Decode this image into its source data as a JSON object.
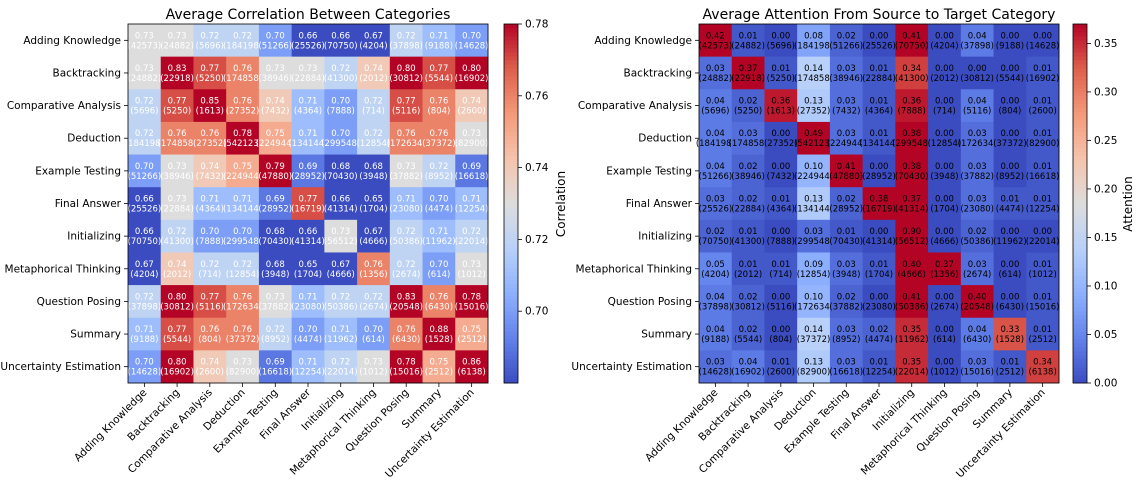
{
  "chart_data": [
    {
      "type": "heatmap",
      "title": "Average Correlation Between Categories",
      "xlabel": "",
      "ylabel": "",
      "categories": [
        "Adding Knowledge",
        "Backtracking",
        "Comparative Analysis",
        "Deduction",
        "Example Testing",
        "Final Answer",
        "Initializing",
        "Metaphorical Thinking",
        "Question Posing",
        "Summary",
        "Uncertainty Estimation"
      ],
      "values": [
        [
          "0.73",
          "0.73",
          "0.72",
          "0.72",
          "0.70",
          "0.66",
          "0.66",
          "0.67",
          "0.72",
          "0.71",
          "0.70"
        ],
        [
          "0.73",
          "0.83",
          "0.77",
          "0.76",
          "0.73",
          "0.73",
          "0.72",
          "0.74",
          "0.80",
          "0.77",
          "0.80"
        ],
        [
          "0.72",
          "0.77",
          "0.85",
          "0.76",
          "0.74",
          "0.71",
          "0.70",
          "0.72",
          "0.77",
          "0.76",
          "0.74"
        ],
        [
          "0.72",
          "0.76",
          "0.76",
          "0.78",
          "0.75",
          "0.71",
          "0.70",
          "0.72",
          "0.76",
          "0.76",
          "0.73"
        ],
        [
          "0.70",
          "0.73",
          "0.74",
          "0.75",
          "0.79",
          "0.69",
          "0.68",
          "0.68",
          "0.73",
          "0.72",
          "0.69"
        ],
        [
          "0.66",
          "0.73",
          "0.71",
          "0.71",
          "0.69",
          "0.77",
          "0.66",
          "0.65",
          "0.71",
          "0.70",
          "0.71"
        ],
        [
          "0.66",
          "0.72",
          "0.70",
          "0.70",
          "0.68",
          "0.66",
          "0.73",
          "0.67",
          "0.72",
          "0.71",
          "0.72"
        ],
        [
          "0.67",
          "0.74",
          "0.72",
          "0.72",
          "0.68",
          "0.65",
          "0.67",
          "0.76",
          "0.72",
          "0.70",
          "0.73"
        ],
        [
          "0.72",
          "0.80",
          "0.77",
          "0.76",
          "0.73",
          "0.71",
          "0.72",
          "0.72",
          "0.83",
          "0.76",
          "0.78"
        ],
        [
          "0.71",
          "0.77",
          "0.76",
          "0.76",
          "0.72",
          "0.70",
          "0.71",
          "0.70",
          "0.76",
          "0.88",
          "0.75"
        ],
        [
          "0.70",
          "0.80",
          "0.74",
          "0.73",
          "0.69",
          "0.71",
          "0.72",
          "0.73",
          "0.78",
          "0.75",
          "0.86"
        ]
      ],
      "counts": [
        [
          "(42573)",
          "(24882)",
          "(5696)",
          "(184198)",
          "(51266)",
          "(25526)",
          "(70750)",
          "(4204)",
          "(37898)",
          "(9188)",
          "(14628)"
        ],
        [
          "(24882)",
          "(22918)",
          "(5250)",
          "(174858)",
          "(38946)",
          "(22884)",
          "(41300)",
          "(2012)",
          "(30812)",
          "(5544)",
          "(16902)"
        ],
        [
          "(5696)",
          "(5250)",
          "(1613)",
          "(27352)",
          "(7432)",
          "(4364)",
          "(7888)",
          "(714)",
          "(5116)",
          "(804)",
          "(2600)"
        ],
        [
          "(184198)",
          "(174858)",
          "(27352)",
          "(542123)",
          "(224944)",
          "(134144)",
          "(299548)",
          "(12854)",
          "(172634)",
          "(37372)",
          "(82900)"
        ],
        [
          "(51266)",
          "(38946)",
          "(7432)",
          "(224944)",
          "(47880)",
          "(28952)",
          "(70430)",
          "(3948)",
          "(37882)",
          "(8952)",
          "(16618)"
        ],
        [
          "(25526)",
          "(22884)",
          "(4364)",
          "(134144)",
          "(28952)",
          "(16719)",
          "(41314)",
          "(1704)",
          "(23080)",
          "(4474)",
          "(12254)"
        ],
        [
          "(70750)",
          "(41300)",
          "(7888)",
          "(299548)",
          "(70430)",
          "(41314)",
          "(56512)",
          "(4666)",
          "(50386)",
          "(11962)",
          "(22014)"
        ],
        [
          "(4204)",
          "(2012)",
          "(714)",
          "(12854)",
          "(3948)",
          "(1704)",
          "(4666)",
          "(1356)",
          "(2674)",
          "(614)",
          "(1012)"
        ],
        [
          "(37898)",
          "(30812)",
          "(5116)",
          "(172634)",
          "(37882)",
          "(23080)",
          "(50386)",
          "(2674)",
          "(20548)",
          "(6430)",
          "(15016)"
        ],
        [
          "(9188)",
          "(5544)",
          "(804)",
          "(37372)",
          "(8952)",
          "(4474)",
          "(11962)",
          "(614)",
          "(6430)",
          "(1528)",
          "(2512)"
        ],
        [
          "(14628)",
          "(16902)",
          "(2600)",
          "(82900)",
          "(16618)",
          "(12254)",
          "(22014)",
          "(1012)",
          "(15016)",
          "(2512)",
          "(6138)"
        ]
      ],
      "colorbar": {
        "label": "Correlation",
        "colormap": "coolwarm",
        "vmin": 0.68,
        "vmax": 0.78,
        "ticks": [
          "0.70",
          "0.72",
          "0.74",
          "0.76",
          "0.78"
        ]
      }
    },
    {
      "type": "heatmap",
      "title": "Average Attention From Source to Target Category",
      "xlabel": "",
      "ylabel": "",
      "categories": [
        "Adding Knowledge",
        "Backtracking",
        "Comparative Analysis",
        "Deduction",
        "Example Testing",
        "Final Answer",
        "Initializing",
        "Metaphorical Thinking",
        "Question Posing",
        "Summary",
        "Uncertainty Estimation"
      ],
      "values": [
        [
          "0.42",
          "0.01",
          "0.00",
          "0.08",
          "0.02",
          "0.00",
          "0.41",
          "0.00",
          "0.04",
          "0.00",
          "0.00"
        ],
        [
          "0.03",
          "0.37",
          "0.01",
          "0.14",
          "0.03",
          "0.01",
          "0.34",
          "0.00",
          "0.00",
          "0.00",
          "0.01"
        ],
        [
          "0.04",
          "0.02",
          "0.36",
          "0.13",
          "0.03",
          "0.01",
          "0.36",
          "0.00",
          "0.04",
          "0.00",
          "0.01"
        ],
        [
          "0.04",
          "0.03",
          "0.00",
          "0.49",
          "0.03",
          "0.01",
          "0.38",
          "0.00",
          "0.03",
          "0.00",
          "0.01"
        ],
        [
          "0.04",
          "0.02",
          "0.00",
          "0.10",
          "0.41",
          "0.00",
          "0.38",
          "0.00",
          "0.03",
          "0.00",
          "0.01"
        ],
        [
          "0.03",
          "0.02",
          "0.01",
          "0.13",
          "0.02",
          "0.38",
          "0.37",
          "0.00",
          "0.03",
          "0.01",
          "0.01"
        ],
        [
          "0.02",
          "0.01",
          "0.00",
          "0.03",
          "0.01",
          "0.00",
          "0.90",
          "0.00",
          "0.02",
          "0.00",
          "0.00"
        ],
        [
          "0.05",
          "0.01",
          "0.01",
          "0.09",
          "0.03",
          "0.01",
          "0.40",
          "0.37",
          "0.03",
          "0.00",
          "0.01"
        ],
        [
          "0.04",
          "0.02",
          "0.00",
          "0.10",
          "0.02",
          "0.00",
          "0.41",
          "0.00",
          "0.40",
          "0.00",
          "0.01"
        ],
        [
          "0.04",
          "0.02",
          "0.00",
          "0.14",
          "0.03",
          "0.02",
          "0.35",
          "0.00",
          "0.04",
          "0.33",
          "0.01"
        ],
        [
          "0.03",
          "0.04",
          "0.01",
          "0.13",
          "0.03",
          "0.01",
          "0.35",
          "0.00",
          "0.03",
          "0.01",
          "0.34"
        ]
      ],
      "counts": [
        [
          "(42573)",
          "(24882)",
          "(5696)",
          "(184198)",
          "(51266)",
          "(25526)",
          "(70750)",
          "(4204)",
          "(37898)",
          "(9188)",
          "(14628)"
        ],
        [
          "(24882)",
          "(22918)",
          "(5250)",
          "(174858)",
          "(38946)",
          "(22884)",
          "(41300)",
          "(2012)",
          "(30812)",
          "(5544)",
          "(16902)"
        ],
        [
          "(5696)",
          "(5250)",
          "(1613)",
          "(27352)",
          "(7432)",
          "(4364)",
          "(7888)",
          "(714)",
          "(5116)",
          "(804)",
          "(2600)"
        ],
        [
          "(184198)",
          "(174858)",
          "(27352)",
          "(542123)",
          "(224944)",
          "(134144)",
          "(299548)",
          "(12854)",
          "(172634)",
          "(37372)",
          "(82900)"
        ],
        [
          "(51266)",
          "(38946)",
          "(7432)",
          "(224944)",
          "(47880)",
          "(28952)",
          "(70430)",
          "(3948)",
          "(37882)",
          "(8952)",
          "(16618)"
        ],
        [
          "(25526)",
          "(22884)",
          "(4364)",
          "(134144)",
          "(28952)",
          "(16719)",
          "(41314)",
          "(1704)",
          "(23080)",
          "(4474)",
          "(12254)"
        ],
        [
          "(70750)",
          "(41300)",
          "(7888)",
          "(299548)",
          "(70430)",
          "(41314)",
          "(56512)",
          "(4666)",
          "(50386)",
          "(11962)",
          "(22014)"
        ],
        [
          "(4204)",
          "(2012)",
          "(714)",
          "(12854)",
          "(3948)",
          "(1704)",
          "(4666)",
          "(1356)",
          "(2674)",
          "(614)",
          "(1012)"
        ],
        [
          "(37898)",
          "(30812)",
          "(5116)",
          "(172634)",
          "(37882)",
          "(23080)",
          "(50386)",
          "(2674)",
          "(20548)",
          "(6430)",
          "(15016)"
        ],
        [
          "(9188)",
          "(5544)",
          "(804)",
          "(37372)",
          "(8952)",
          "(4474)",
          "(11962)",
          "(614)",
          "(6430)",
          "(1528)",
          "(2512)"
        ],
        [
          "(14628)",
          "(16902)",
          "(2600)",
          "(82900)",
          "(16618)",
          "(12254)",
          "(22014)",
          "(1012)",
          "(15016)",
          "(2512)",
          "(6138)"
        ]
      ],
      "colorbar": {
        "label": "Attention",
        "colormap": "coolwarm",
        "vmin": 0.0,
        "vmax": 0.37,
        "ticks": [
          "0.00",
          "0.05",
          "0.10",
          "0.15",
          "0.20",
          "0.25",
          "0.30",
          "0.35"
        ]
      }
    }
  ]
}
